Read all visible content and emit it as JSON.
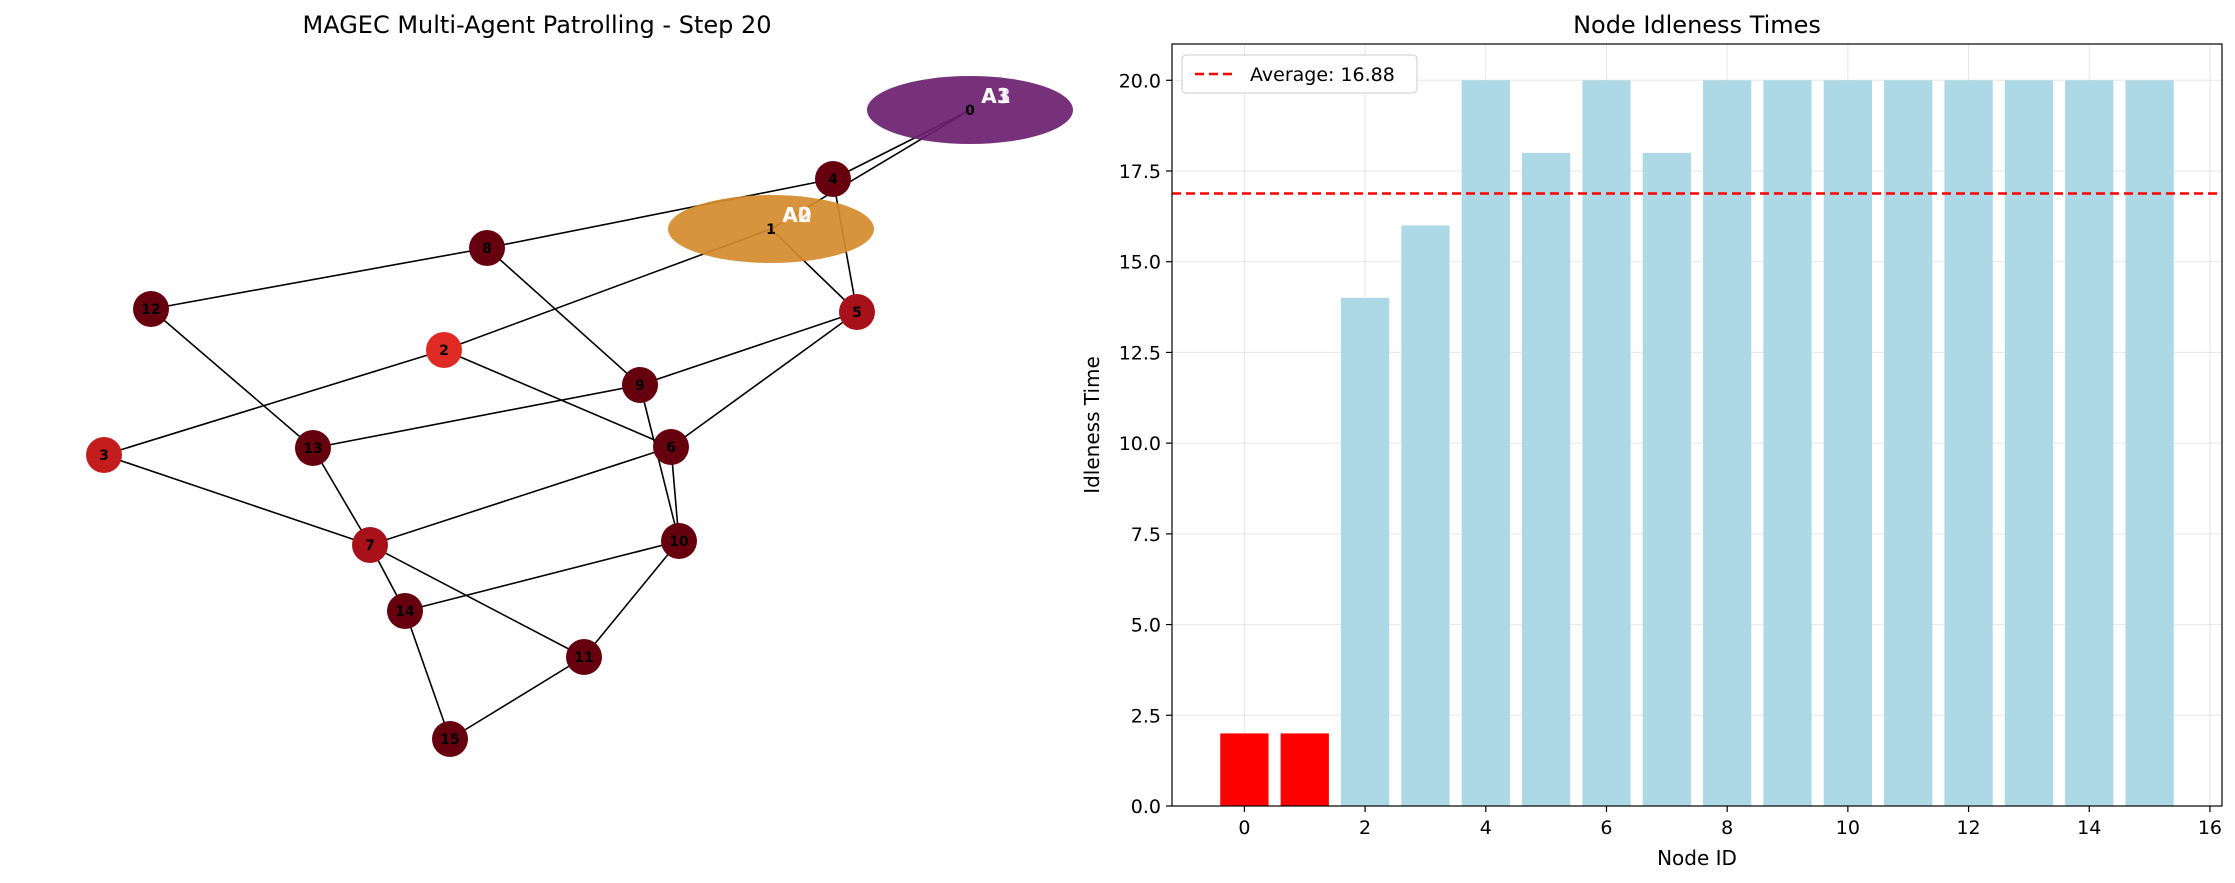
{
  "chart_data": [
    {
      "type": "network",
      "title": "MAGEC Multi-Agent Patrolling - Step 20",
      "nodes": [
        {
          "id": "0",
          "color": "#6b1f70"
        },
        {
          "id": "1",
          "color": "#d58a2d"
        },
        {
          "id": "2",
          "color": "#e02a24"
        },
        {
          "id": "3",
          "color": "#c41d1d"
        },
        {
          "id": "4",
          "color": "#66000f"
        },
        {
          "id": "5",
          "color": "#a9111a"
        },
        {
          "id": "6",
          "color": "#66000f"
        },
        {
          "id": "7",
          "color": "#a9111a"
        },
        {
          "id": "8",
          "color": "#66000f"
        },
        {
          "id": "9",
          "color": "#66000f"
        },
        {
          "id": "10",
          "color": "#66000f"
        },
        {
          "id": "11",
          "color": "#66000f"
        },
        {
          "id": "12",
          "color": "#66000f"
        },
        {
          "id": "13",
          "color": "#66000f"
        },
        {
          "id": "14",
          "color": "#66000f"
        },
        {
          "id": "15",
          "color": "#66000f"
        }
      ],
      "edges": [
        [
          "0",
          "4"
        ],
        [
          "0",
          "1"
        ],
        [
          "4",
          "8"
        ],
        [
          "4",
          "5"
        ],
        [
          "8",
          "12"
        ],
        [
          "8",
          "9"
        ],
        [
          "1",
          "2"
        ],
        [
          "1",
          "5"
        ],
        [
          "12",
          "13"
        ],
        [
          "2",
          "3"
        ],
        [
          "2",
          "6"
        ],
        [
          "5",
          "9"
        ],
        [
          "5",
          "6"
        ],
        [
          "9",
          "13"
        ],
        [
          "9",
          "10"
        ],
        [
          "3",
          "7"
        ],
        [
          "13",
          "7"
        ],
        [
          "6",
          "7"
        ],
        [
          "6",
          "10"
        ],
        [
          "7",
          "14"
        ],
        [
          "7",
          "11"
        ],
        [
          "10",
          "14"
        ],
        [
          "10",
          "11"
        ],
        [
          "14",
          "15"
        ],
        [
          "11",
          "15"
        ]
      ],
      "agents": [
        {
          "label": "A1",
          "node": "0",
          "color": "#6b1f70"
        },
        {
          "label": "A3",
          "node": "0",
          "color": "#6b1f70"
        },
        {
          "label": "A0",
          "node": "1",
          "color": "#d58a2d"
        },
        {
          "label": "A2",
          "node": "1",
          "color": "#d58a2d"
        }
      ]
    },
    {
      "type": "bar",
      "title": "Node Idleness Times",
      "xlabel": "Node ID",
      "ylabel": "Idleness Time",
      "categories": [
        0,
        1,
        2,
        3,
        4,
        5,
        6,
        7,
        8,
        9,
        10,
        11,
        12,
        13,
        14,
        15
      ],
      "values": [
        2,
        2,
        14,
        16,
        20,
        18,
        20,
        18,
        20,
        20,
        20,
        20,
        20,
        20,
        20,
        20
      ],
      "bar_colors": [
        "#ff0000",
        "#ff0000",
        "#add8e6",
        "#add8e6",
        "#add8e6",
        "#add8e6",
        "#add8e6",
        "#add8e6",
        "#add8e6",
        "#add8e6",
        "#add8e6",
        "#add8e6",
        "#add8e6",
        "#add8e6",
        "#add8e6",
        "#add8e6"
      ],
      "xlim": [
        -1.2,
        16.2
      ],
      "ylim": [
        0,
        21
      ],
      "xticks": [
        "0",
        "2",
        "4",
        "6",
        "8",
        "10",
        "12",
        "14",
        "16"
      ],
      "yticks": [
        "0.0",
        "2.5",
        "5.0",
        "7.5",
        "10.0",
        "12.5",
        "15.0",
        "17.5",
        "20.0"
      ],
      "average": 16.88,
      "average_color": "#ff0000",
      "legend": "Average: 16.88",
      "legend_position": "upper-left",
      "grid": true
    }
  ]
}
